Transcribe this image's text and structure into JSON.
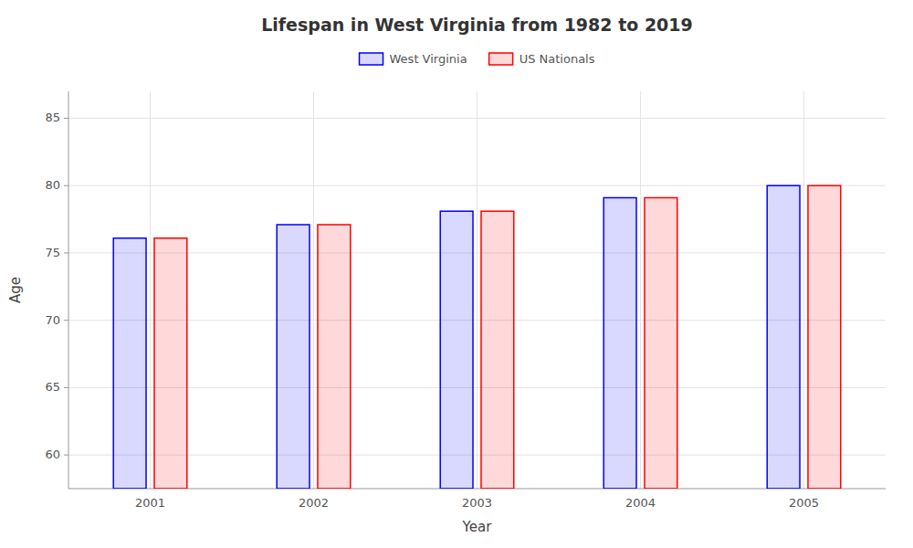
{
  "chart_data": {
    "type": "bar",
    "title": "Lifespan in West Virginia from 1982 to 2019",
    "x_label": "Year",
    "y_label": "Age",
    "categories": [
      "2001",
      "2002",
      "2003",
      "2004",
      "2005"
    ],
    "series": [
      {
        "name": "West Virginia",
        "color": "#0000ff",
        "values": [
          76.1,
          77.1,
          78.1,
          79.1,
          80.0
        ]
      },
      {
        "name": "US Nationals",
        "color": "#ff0000",
        "values": [
          76.1,
          77.1,
          78.1,
          79.1,
          80.0
        ]
      }
    ],
    "ylim": [
      57.5,
      87
    ],
    "yticks": [
      60,
      65,
      70,
      75,
      80,
      85
    ],
    "grid": true,
    "legend": "top"
  }
}
